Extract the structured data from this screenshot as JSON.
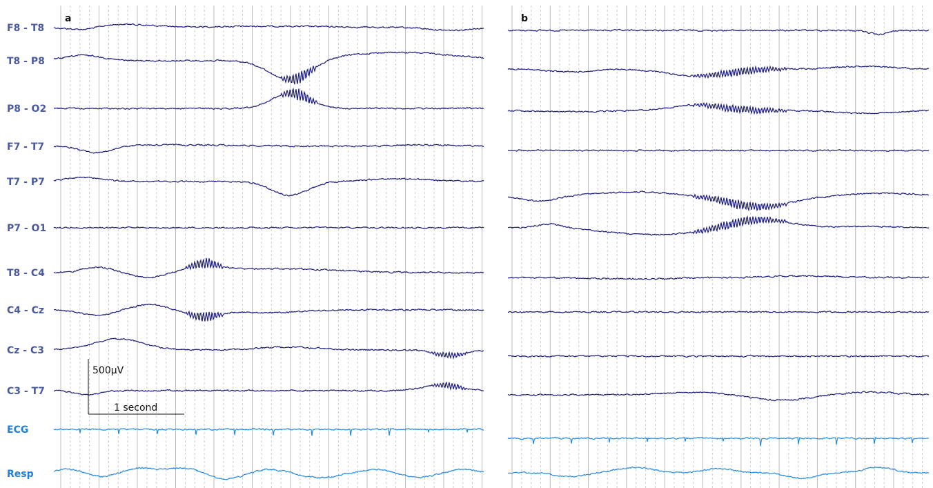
{
  "colors": {
    "eeg_trace": "#1a1a7a",
    "eeg_label": "#4a5aa0",
    "aux_trace": "#2288e0",
    "aux_label": "#1e7fe0",
    "grid_major": "#bbbbbb",
    "grid_minor": "#cccccc"
  },
  "chart_data": {
    "type": "line",
    "description_units": {
      "amplitude": "µV",
      "time": "seconds"
    },
    "panels": [
      {
        "id": "a",
        "label": "a"
      },
      {
        "id": "b",
        "label": "b"
      }
    ],
    "channels": [
      {
        "name": "F8 - T8",
        "kind": "eeg"
      },
      {
        "name": "T8 - P8",
        "kind": "eeg"
      },
      {
        "name": "P8 - O2",
        "kind": "eeg"
      },
      {
        "name": "F7 - T7",
        "kind": "eeg"
      },
      {
        "name": "T7 - P7",
        "kind": "eeg"
      },
      {
        "name": "P7 - O1",
        "kind": "eeg"
      },
      {
        "name": "T8 - C4",
        "kind": "eeg"
      },
      {
        "name": "C4 - Cz",
        "kind": "eeg"
      },
      {
        "name": "Cz - C3",
        "kind": "eeg"
      },
      {
        "name": "C3 - T7",
        "kind": "eeg"
      },
      {
        "name": "ECG",
        "kind": "aux"
      },
      {
        "name": "Resp",
        "kind": "aux"
      }
    ],
    "scale_bar": {
      "amplitude_label": "500µV",
      "time_label": "1 second",
      "amplitude_uV": 500,
      "time_s": 1
    }
  }
}
